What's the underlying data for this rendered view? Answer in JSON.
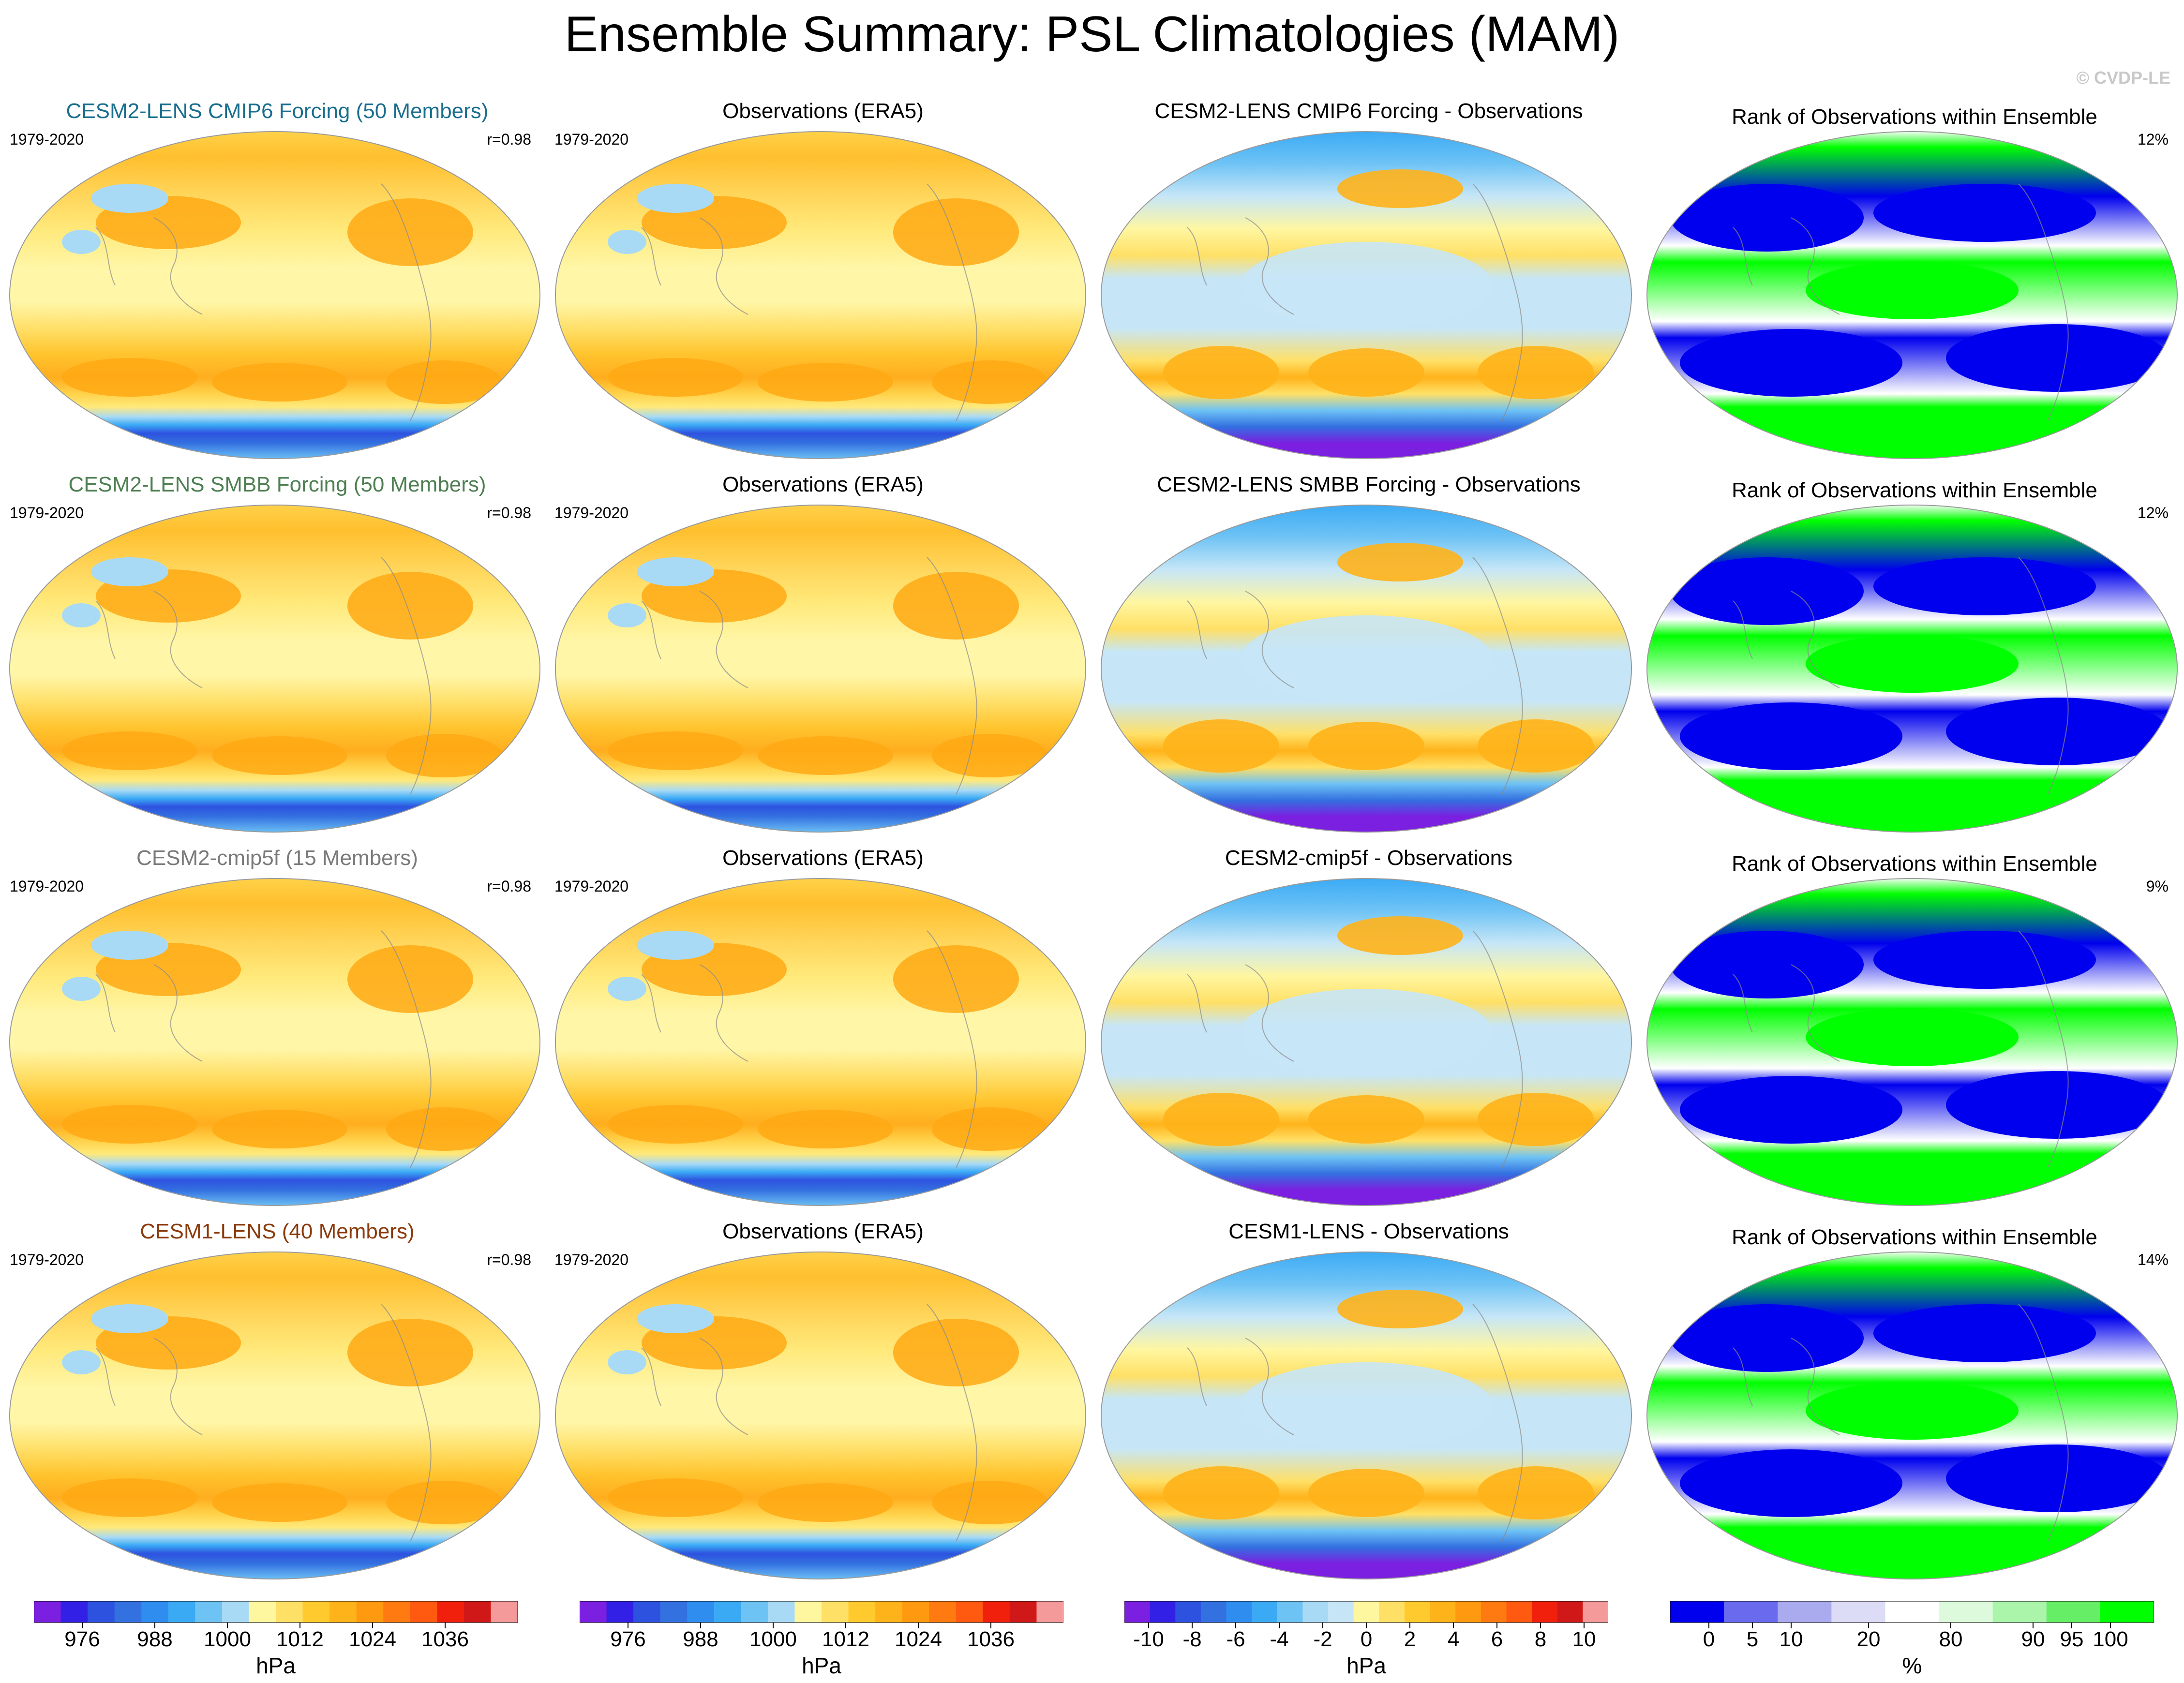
{
  "title": "Ensemble Summary: PSL Climatologies (MAM)",
  "credit": "© CVDP-LE",
  "colors": {
    "row_titles": [
      "#1a6e8e",
      "#4e7f52",
      "#7a7a7a",
      "#8b3a0c"
    ],
    "psl_scale": [
      "#7b1fe0",
      "#3320e6",
      "#2e52e0",
      "#3370e0",
      "#2f8df0",
      "#3aaaf5",
      "#6ec3f5",
      "#a9daf5",
      "#fff6a0",
      "#ffe066",
      "#ffca2e",
      "#ffb31a",
      "#ff9a10",
      "#ff7a10",
      "#ff5a10",
      "#f0200c",
      "#d01818",
      "#f59a9a"
    ],
    "diff_scale": [
      "#7b1fe0",
      "#3320e6",
      "#2e52e0",
      "#3370e0",
      "#2f8df0",
      "#3aaaf5",
      "#6ec3f5",
      "#a9daf5",
      "#c6e6f7",
      "#fff6a0",
      "#ffe066",
      "#ffca2e",
      "#ffb31a",
      "#ff9a10",
      "#ff7a10",
      "#ff5a10",
      "#f0200c",
      "#d01818",
      "#f59a9a"
    ],
    "rank_scale": [
      "#0000ee",
      "#6a6aee",
      "#aaaaee",
      "#dcdcf6",
      "#ffffff",
      "#ddfadd",
      "#aaf5aa",
      "#66ee66",
      "#00ff00"
    ]
  },
  "rows": [
    {
      "model_title": "CESM2-LENS CMIP6 Forcing (50 Members)",
      "period": "1979-2020",
      "r_label": "r=0.98",
      "obs_title": "Observations (ERA5)",
      "obs_period": "1979-2020",
      "diff_title": "CESM2-LENS CMIP6 Forcing - Observations",
      "rank_title": "Rank of Observations within Ensemble",
      "rank_pct": "12%"
    },
    {
      "model_title": "CESM2-LENS SMBB Forcing (50 Members)",
      "period": "1979-2020",
      "r_label": "r=0.98",
      "obs_title": "Observations (ERA5)",
      "obs_period": "1979-2020",
      "diff_title": "CESM2-LENS SMBB Forcing - Observations",
      "rank_title": "Rank of Observations within Ensemble",
      "rank_pct": "12%"
    },
    {
      "model_title": "CESM2-cmip5f (15 Members)",
      "period": "1979-2020",
      "r_label": "r=0.98",
      "obs_title": "Observations (ERA5)",
      "obs_period": "1979-2020",
      "diff_title": "CESM2-cmip5f - Observations",
      "rank_title": "Rank of Observations within Ensemble",
      "rank_pct": "9%"
    },
    {
      "model_title": "CESM1-LENS (40 Members)",
      "period": "1979-2020",
      "r_label": "r=0.98",
      "obs_title": "Observations (ERA5)",
      "obs_period": "1979-2020",
      "diff_title": "CESM1-LENS - Observations",
      "rank_title": "Rank of Observations within Ensemble",
      "rank_pct": "14%"
    }
  ],
  "colorbars": [
    {
      "name": "psl-colorbar-model",
      "unit": "hPa",
      "ticks": [
        "976",
        "988",
        "1000",
        "1012",
        "1024",
        "1036"
      ]
    },
    {
      "name": "psl-colorbar-obs",
      "unit": "hPa",
      "ticks": [
        "976",
        "988",
        "1000",
        "1012",
        "1024",
        "1036"
      ]
    },
    {
      "name": "diff-colorbar",
      "unit": "hPa",
      "ticks": [
        "-10",
        "-8",
        "-6",
        "-4",
        "-2",
        "0",
        "2",
        "4",
        "6",
        "8",
        "10"
      ]
    },
    {
      "name": "rank-colorbar",
      "unit": "%",
      "ticks": [
        "0",
        "5",
        "10",
        "20",
        "80",
        "90",
        "95",
        "100"
      ]
    }
  ],
  "chart_data": {
    "type": "heatmap",
    "title": "Ensemble Summary: PSL Climatologies (MAM)",
    "description_panels": [
      "model climatology",
      "observations",
      "model minus observations",
      "rank of observations within ensemble"
    ],
    "psl_levels_hPa": [
      976,
      980,
      984,
      988,
      992,
      996,
      1000,
      1004,
      1008,
      1012,
      1016,
      1020,
      1024,
      1028,
      1032,
      1036,
      1040
    ],
    "diff_levels_hPa": [
      -10,
      -9,
      -8,
      -7,
      -6,
      -5,
      -4,
      -3,
      -2,
      -1,
      0,
      1,
      2,
      3,
      4,
      5,
      6,
      7,
      8,
      9,
      10
    ],
    "rank_levels_pct": [
      0,
      5,
      10,
      20,
      80,
      90,
      95,
      100
    ],
    "models": [
      "CESM2-LENS CMIP6 Forcing (50 Members)",
      "CESM2-LENS SMBB Forcing (50 Members)",
      "CESM2-cmip5f (15 Members)",
      "CESM1-LENS (40 Members)"
    ],
    "pattern_correlation": [
      0.98,
      0.98,
      0.98,
      0.98
    ],
    "rank_summary_pct": [
      12,
      12,
      9,
      14
    ]
  }
}
